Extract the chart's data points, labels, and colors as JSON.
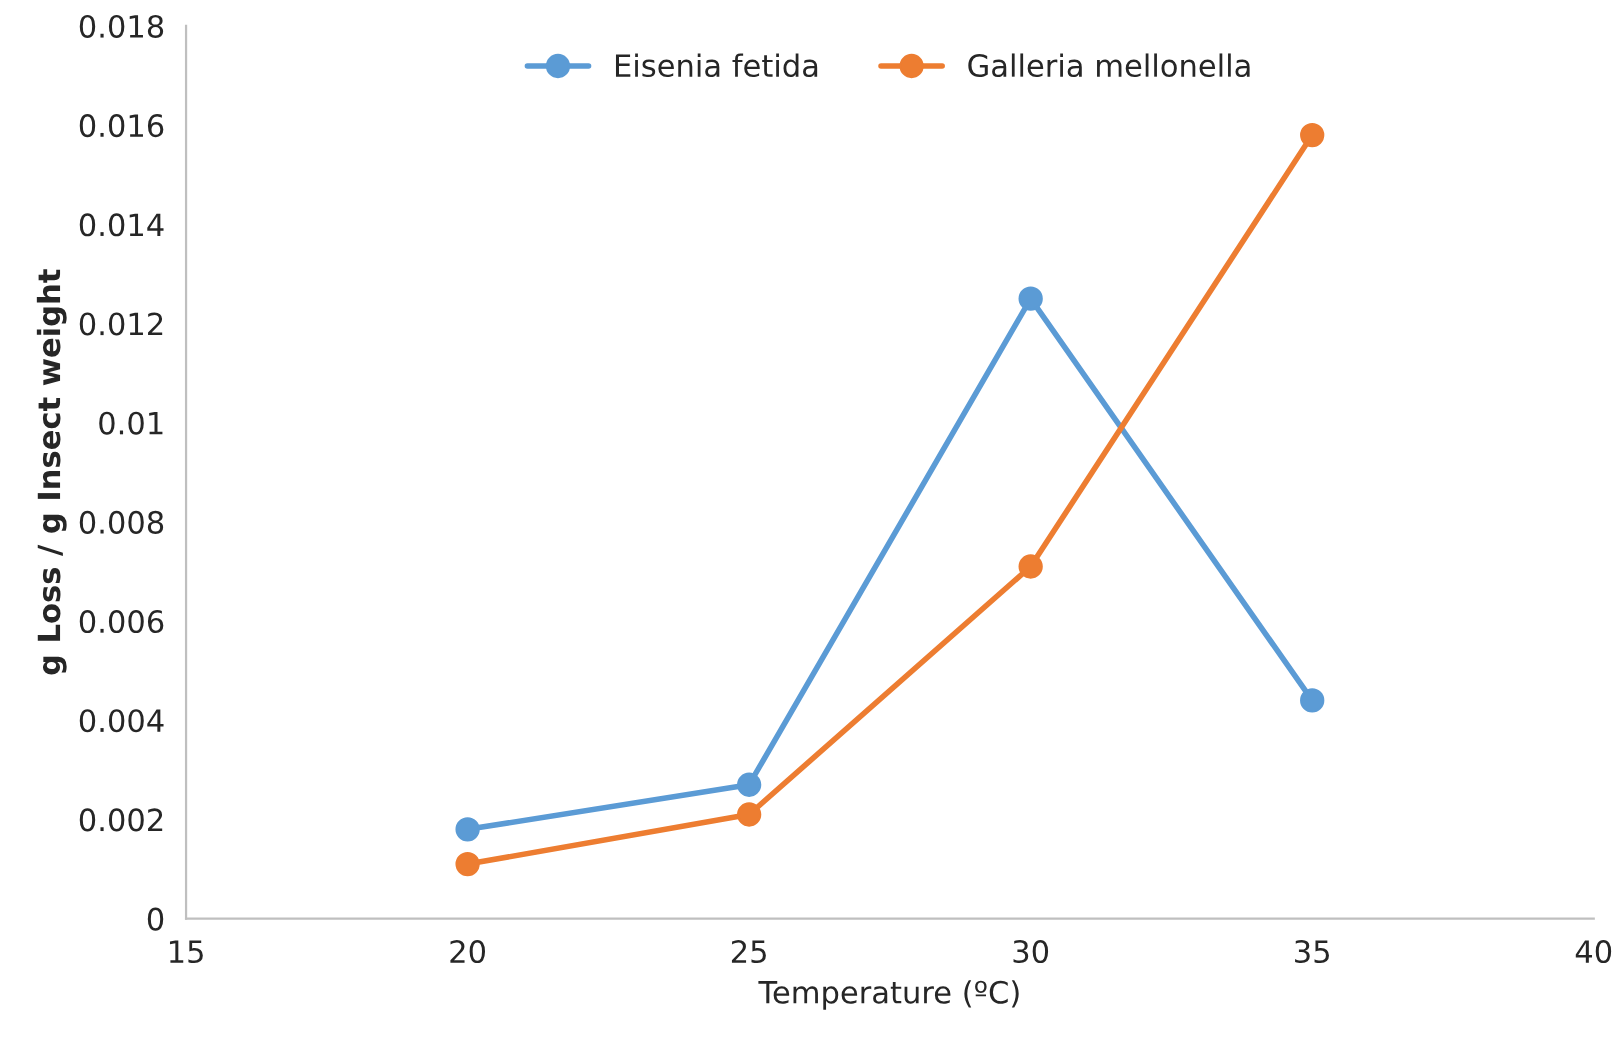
{
  "chart_data": {
    "type": "line",
    "xlabel": "Temperature (ºC)",
    "ylabel": "g Loss / g Insect weight",
    "x": [
      20,
      25,
      30,
      35
    ],
    "series": [
      {
        "name": "Eisenia fetida",
        "color": "#5b9bd5",
        "values": [
          0.0018,
          0.0027,
          0.0125,
          0.0044
        ]
      },
      {
        "name": "Galleria mellonella",
        "color": "#ed7d31",
        "values": [
          0.0011,
          0.0021,
          0.0071,
          0.0158
        ]
      }
    ],
    "xlim": [
      15,
      40
    ],
    "xticks": [
      15,
      20,
      25,
      30,
      35,
      40
    ],
    "ylim": [
      0,
      0.018
    ],
    "yticks": [
      0,
      0.002,
      0.004,
      0.006,
      0.008,
      0.01,
      0.012,
      0.014,
      0.016,
      0.018
    ],
    "grid": false,
    "legend": "top",
    "marker": "circle",
    "line_style": "solid"
  }
}
